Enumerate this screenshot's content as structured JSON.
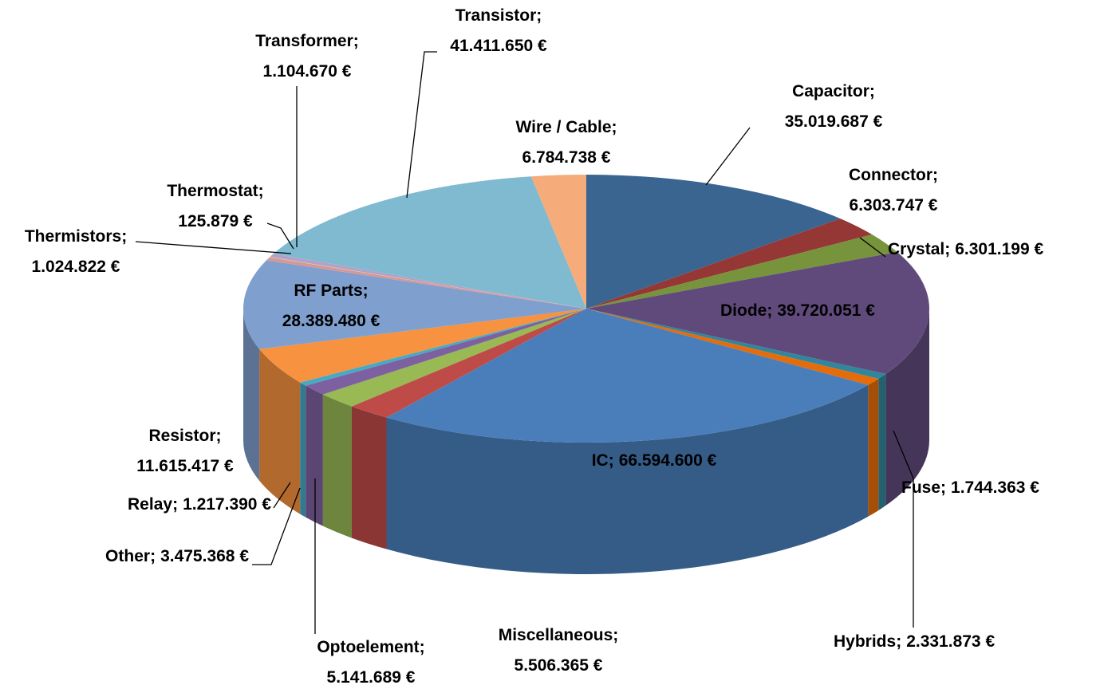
{
  "chart_data": {
    "type": "pie3d",
    "separator": ";",
    "categories": [
      "Capacitor",
      "Connector",
      "Crystal",
      "Diode",
      "Fuse",
      "Hybrids",
      "IC",
      "Miscellaneous",
      "Optoelement",
      "Other",
      "Relay",
      "Resistor",
      "RF Parts",
      "Thermistors",
      "Thermostat",
      "Transformer",
      "Transistor",
      "Wire / Cable"
    ],
    "values": [
      35019687,
      6303747,
      6301199,
      39720051,
      1744363,
      2331873,
      66594600,
      5506365,
      5141689,
      3475368,
      1217390,
      11615417,
      28389480,
      1024822,
      125879,
      1104670,
      41411650,
      6784738
    ],
    "value_labels": [
      "35.019.687 €",
      "6.303.747 €",
      "6.301.199 €",
      "39.720.051 €",
      "1.744.363 €",
      "2.331.873 €",
      "66.594.600 €",
      "5.506.365 €",
      "5.141.689 €",
      "3.475.368 €",
      "1.217.390 €",
      "11.615.417 €",
      "28.389.480 €",
      "1.024.822 €",
      "125.879 €",
      "1.104.670 €",
      "41.411.650 €",
      "6.784.738 €"
    ],
    "colors": [
      "#3b6591",
      "#953735",
      "#77933c",
      "#604a7b",
      "#31859c",
      "#e46c0a",
      "#4a7ebb",
      "#be4b48",
      "#98b954",
      "#7d60a0",
      "#46aac5",
      "#f69240",
      "#7f9fcf",
      "#d99694",
      "#c3d69b",
      "#b3a2c7",
      "#7fbad0",
      "#f5ab7a"
    ]
  }
}
